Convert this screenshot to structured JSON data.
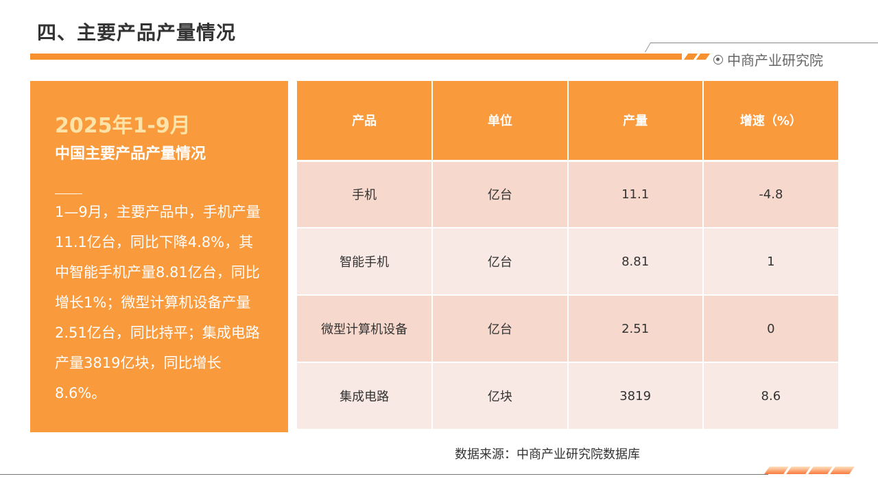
{
  "header": {
    "title": "四、主要产品产量情况",
    "brand": "中商产业研究院",
    "brand_icon": "target-circle-icon",
    "accent": "#f7902f"
  },
  "panel": {
    "year": "2025年1-9月",
    "subtitle": "中国主要产品产量情况",
    "body": "1—9月，主要产品中，手机产量11.1亿台，同比下降4.8%，其中智能手机产量8.81亿台，同比增长1%；微型计算机设备产量2.51亿台，同比持平；集成电路产量3819亿块，同比增长8.6%。"
  },
  "table": {
    "headers": [
      "产品",
      "单位",
      "产量",
      "增速（%）"
    ],
    "rows": [
      [
        "手机",
        "亿台",
        "11.1",
        "-4.8"
      ],
      [
        "智能手机",
        "亿台",
        "8.81",
        "1"
      ],
      [
        "微型计算机设备",
        "亿台",
        "2.51",
        "0"
      ],
      [
        "集成电路",
        "亿块",
        "3819",
        "8.6"
      ]
    ]
  },
  "source": "数据来源：中商产业研究院数据库"
}
